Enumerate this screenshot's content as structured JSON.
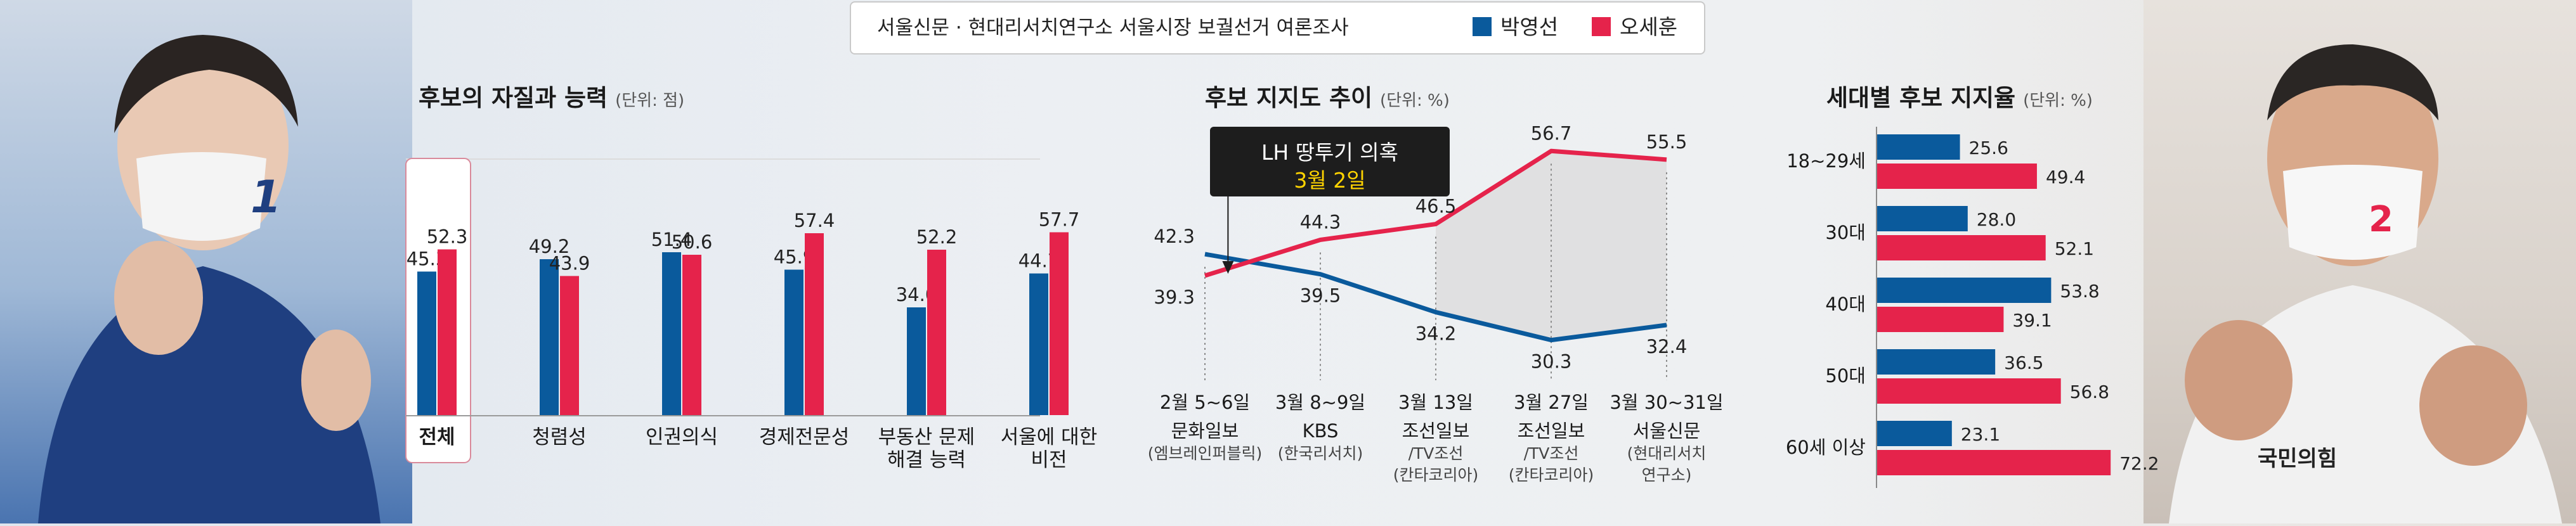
{
  "header": {
    "title": "서울신문 · 현대리서치연구소 서울시장 보궐선거 여론조사",
    "colors": {
      "park": "#0a5a9c",
      "oh": "#e5234b"
    }
  },
  "legend": [
    {
      "name": "박영선",
      "color": "#0a5a9c"
    },
    {
      "name": "오세훈",
      "color": "#e5234b"
    }
  ],
  "photos": {
    "left_number": "1",
    "right_number": "2",
    "right_party": "국민의힘"
  },
  "panels": {
    "quality": {
      "title": "후보의 자질과 능력",
      "unit": "(단위: 점)"
    },
    "trend": {
      "title": "후보 지지도 추이",
      "unit": "(단위: %)"
    },
    "age": {
      "title": "세대별 후보 지지율",
      "unit": "(단위: %)"
    }
  },
  "callout": {
    "line1": "LH 땅투기 의혹",
    "line2": "3월 2일"
  },
  "chart_data": [
    {
      "type": "bar",
      "title": "후보의 자질과 능력",
      "unit": "(단위: 점)",
      "categories": [
        [
          "전체"
        ],
        [
          "청렴성"
        ],
        [
          "인권의식"
        ],
        [
          "경제전문성"
        ],
        [
          "부동산 문제",
          "해결 능력"
        ],
        [
          "서울에 대한",
          "비전"
        ]
      ],
      "series": [
        {
          "name": "박영선",
          "values": [
            45.3,
            49.2,
            51.4,
            45.9,
            34.0,
            44.7
          ]
        },
        {
          "name": "오세훈",
          "values": [
            52.3,
            43.9,
            50.6,
            57.4,
            52.2,
            57.7
          ]
        }
      ],
      "highlight_category": "전체"
    },
    {
      "type": "line",
      "title": "후보 지지도 추이",
      "unit": "(단위: %)",
      "x": [
        {
          "date": "2월 5~6일",
          "source": [
            "문화일보",
            "(엠브레인퍼블릭)"
          ]
        },
        {
          "date": "3월 8~9일",
          "source": [
            "KBS",
            "(한국리서치)"
          ]
        },
        {
          "date": "3월 13일",
          "source": [
            "조선일보",
            "/TV조선",
            "(칸타코리아)"
          ]
        },
        {
          "date": "3월 27일",
          "source": [
            "조선일보",
            "/TV조선",
            "(칸타코리아)"
          ]
        },
        {
          "date": "3월 30~31일",
          "source": [
            "서울신문",
            "(현대리서치",
            "연구소)"
          ]
        }
      ],
      "series": [
        {
          "name": "박영선",
          "values": [
            42.3,
            39.5,
            34.2,
            30.3,
            32.4
          ]
        },
        {
          "name": "오세훈",
          "values": [
            39.3,
            44.3,
            46.5,
            56.7,
            55.5
          ]
        }
      ],
      "annotation": {
        "text": "LH 땅투기 의혹",
        "date": "3월 2일"
      }
    },
    {
      "type": "bar",
      "orientation": "horizontal",
      "title": "세대별 후보 지지율",
      "unit": "(단위: %)",
      "categories": [
        "18~29세",
        "30대",
        "40대",
        "50대",
        "60세 이상"
      ],
      "series": [
        {
          "name": "박영선",
          "values": [
            25.6,
            28.0,
            53.8,
            36.5,
            23.1
          ]
        },
        {
          "name": "오세훈",
          "values": [
            49.4,
            52.1,
            39.1,
            56.8,
            72.2
          ]
        }
      ]
    }
  ]
}
